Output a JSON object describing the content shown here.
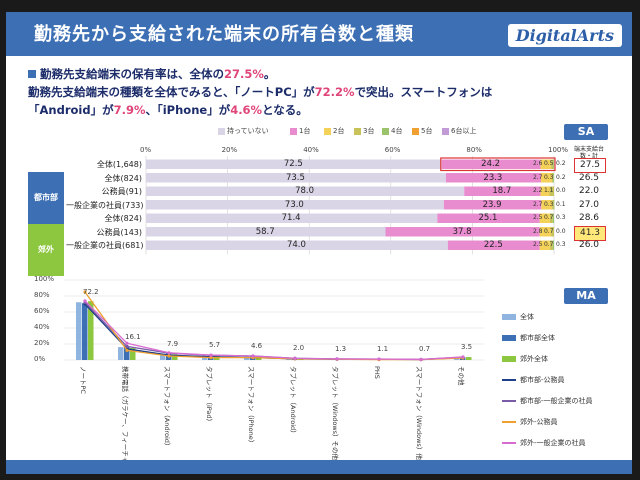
{
  "title": "勤務先から支給された端末の所有台数と種類",
  "logo": "DigitalArts",
  "lead": {
    "l1_pre": "勤務先支給端末の保有率は、全体の",
    "l1_hl": "27.5%",
    "l1_post": "。",
    "l2_pre": "勤務先支給端末の種類を全体でみると、「ノートPC」が",
    "l2_hl": "72.2%",
    "l2_post": "で突出。スマートフォンは",
    "l3_pre": "「Android」が",
    "l3_hl1": "7.9%",
    "l3_mid": "、「iPhone」が",
    "l3_hl2": "4.6%",
    "l3_post": "となる。"
  },
  "badges": {
    "sa": "SA",
    "ma": "MA"
  },
  "avg_header": "端末支給台数・計",
  "groups": {
    "urban": "都市部",
    "rural": "郊外"
  },
  "colors": {
    "accent": "#3d6fb4",
    "highlight": "#e0457a",
    "urban_tag": "#3d6fb4",
    "rural_tag": "#8dc63f"
  },
  "chart_data": [
    {
      "type": "bar",
      "orientation": "horizontal",
      "stacked": true,
      "legend_position": "top",
      "xlim": [
        0,
        100
      ],
      "ticks": [
        "0%",
        "20%",
        "40%",
        "60%",
        "80%",
        "100%"
      ],
      "legend": [
        "持っていない",
        "1台",
        "2台",
        "3台",
        "4台",
        "5台",
        "6台以上"
      ],
      "series_colors": [
        "#d9d4e6",
        "#e98ccf",
        "#f4d25a",
        "#c7c25a",
        "#9bc36b",
        "#f0a030",
        "#c29ad6"
      ],
      "rows": [
        {
          "label": "全体(1,648)",
          "values": [
            72.5,
            24.2,
            2.6,
            0.5,
            0.2,
            0,
            0
          ],
          "avg": "27.5",
          "mark": "red"
        },
        {
          "label": "全体(824)",
          "values": [
            73.5,
            23.3,
            2.7,
            0.3,
            0.2,
            0,
            0
          ],
          "avg": "26.5"
        },
        {
          "label": "公務員(91)",
          "values": [
            78.0,
            18.7,
            2.2,
            1.1,
            0.0,
            0,
            0
          ],
          "avg": "22.0"
        },
        {
          "label": "一般企業の社員(733)",
          "values": [
            73.0,
            23.9,
            2.7,
            0.3,
            0.1,
            0,
            0
          ],
          "avg": "27.0"
        },
        {
          "label": "全体(824)",
          "values": [
            71.4,
            25.1,
            2.5,
            0.7,
            0.3,
            0,
            0
          ],
          "avg": "28.6"
        },
        {
          "label": "公務員(143)",
          "values": [
            58.7,
            37.8,
            2.8,
            0.7,
            0.0,
            0,
            0
          ],
          "avg": "41.3",
          "mark": "hi"
        },
        {
          "label": "一般企業の社員(681)",
          "values": [
            74.0,
            22.5,
            2.5,
            0.7,
            0.3,
            0,
            0
          ],
          "avg": "26.0"
        }
      ]
    },
    {
      "type": "bar",
      "overlay": "line",
      "ylim": [
        0,
        100
      ],
      "yticks": [
        "0%",
        "20%",
        "40%",
        "60%",
        "80%",
        "100%"
      ],
      "categories": [
        "ノートPC",
        "携帯電話（ガラケー、フィーチャーフォン）",
        "スマートフォン（Android）",
        "タブレット（iPad）",
        "スマートフォン（iPhone）",
        "タブレット（Android）",
        "タブレット（Windows）その他",
        "PHS",
        "スマートフォン（Windows）他",
        "その他"
      ],
      "total_labels": [
        "72.2",
        "16.1",
        "7.9",
        "5.7",
        "4.6",
        "2.0",
        "1.3",
        "1.1",
        "0.7",
        "3.5"
      ],
      "series": [
        {
          "name": "全体",
          "kind": "bar",
          "color": "#8fb4e0",
          "values": [
            72.2,
            16.1,
            7.9,
            5.7,
            4.6,
            2.0,
            1.3,
            1.1,
            0.7,
            3.5
          ]
        },
        {
          "name": "都市部全体",
          "kind": "bar",
          "color": "#3d6fb4",
          "values": [
            71.0,
            17.0,
            8.5,
            6.0,
            4.8,
            2.2,
            1.4,
            1.2,
            0.8,
            3.3
          ]
        },
        {
          "name": "郊外全体",
          "kind": "bar",
          "color": "#8dc63f",
          "values": [
            73.5,
            15.0,
            7.2,
            5.4,
            4.3,
            1.8,
            1.2,
            1.0,
            0.6,
            3.7
          ]
        },
        {
          "name": "都市部-公務員",
          "kind": "line",
          "color": "#1f3f88",
          "values": [
            70,
            14,
            6,
            4,
            3,
            1.5,
            1,
            1,
            0.5,
            3
          ]
        },
        {
          "name": "都市部-一般企業の社員",
          "kind": "line",
          "color": "#7a5ba8",
          "values": [
            72,
            17,
            8.5,
            6,
            5,
            2.2,
            1.4,
            1.1,
            0.8,
            3.5
          ]
        },
        {
          "name": "郊外-公務員",
          "kind": "line",
          "color": "#f0a030",
          "values": [
            85,
            12,
            5,
            3,
            3,
            1.5,
            1,
            0.5,
            0.5,
            2.5
          ]
        },
        {
          "name": "郊外-一般企業の社員",
          "kind": "line",
          "color": "#d86bcf",
          "values": [
            74,
            21,
            9,
            6,
            5,
            2,
            1.3,
            1.2,
            0.7,
            3.8
          ]
        }
      ]
    }
  ]
}
